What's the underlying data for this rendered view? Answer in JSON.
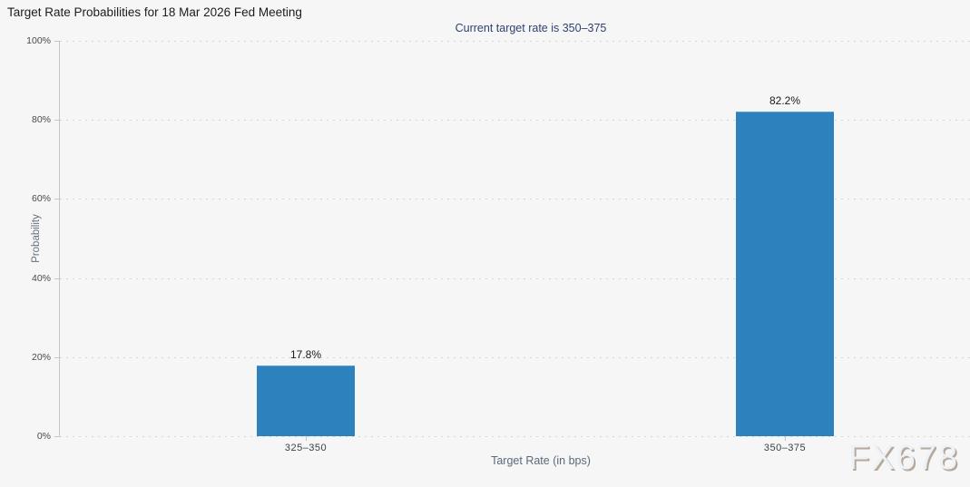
{
  "page": {
    "title": "Target Rate Probabilities for 18 Mar 2026 Fed Meeting",
    "subtitle": "Current target rate is 350–375",
    "watermark": "FX678"
  },
  "chart_data": {
    "type": "bar",
    "title": "Target Rate Probabilities for 18 Mar 2026 Fed Meeting",
    "subtitle": "Current target rate is 350–375",
    "categories": [
      "325–350",
      "350–375"
    ],
    "values": [
      17.8,
      82.2
    ],
    "value_labels": [
      "17.8%",
      "82.2%"
    ],
    "xlabel": "Target Rate (in bps)",
    "ylabel": "Probability",
    "ylim": [
      0,
      100
    ],
    "yticks": [
      0,
      20,
      40,
      60,
      80,
      100
    ],
    "ytick_labels": [
      "0%",
      "20%",
      "40%",
      "60%",
      "80%",
      "100%"
    ],
    "grid": "horizontal-dotted",
    "legend": "none",
    "bar_color": "#2d81bd"
  }
}
